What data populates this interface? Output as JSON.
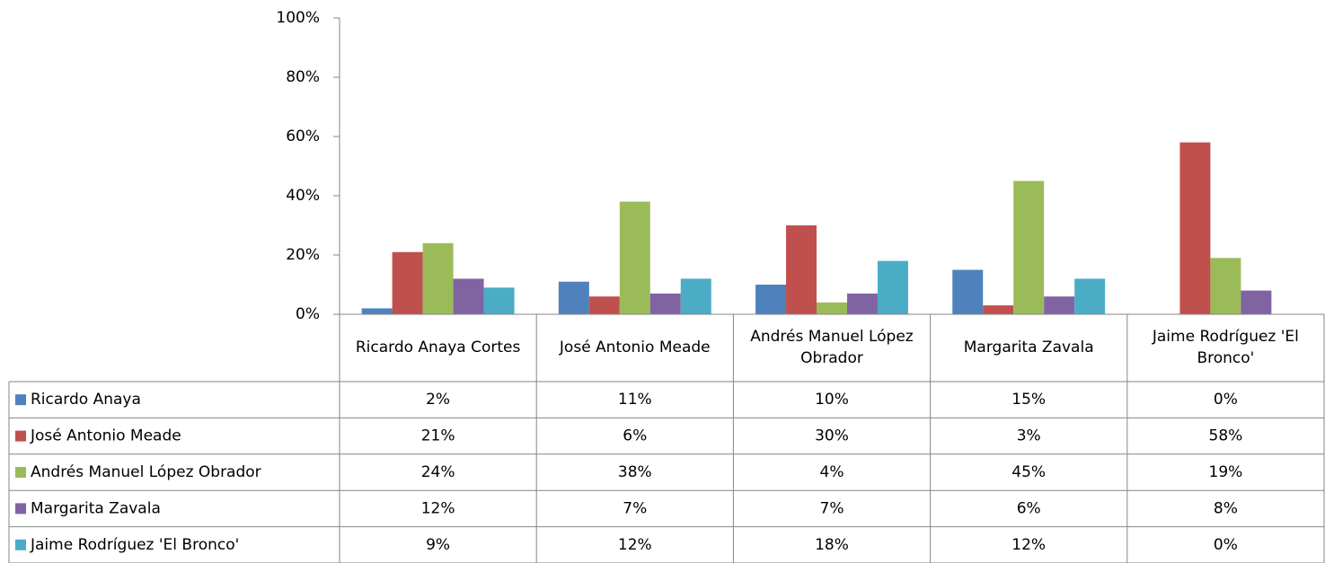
{
  "chart_data": {
    "type": "bar",
    "categories": [
      "Ricardo Anaya Cortes",
      "José Antonio Meade",
      "Andrés Manuel López Obrador",
      "Margarita Zavala",
      "Jaime Rodríguez 'El Bronco'"
    ],
    "series": [
      {
        "name": "Ricardo Anaya",
        "color": "#4f81bd",
        "values": [
          2,
          11,
          10,
          15,
          0
        ],
        "value_labels": [
          "2%",
          "11%",
          "10%",
          "15%",
          "0%"
        ]
      },
      {
        "name": "José Antonio Meade",
        "color": "#c0504d",
        "values": [
          21,
          6,
          30,
          3,
          58
        ],
        "value_labels": [
          "21%",
          "6%",
          "30%",
          "3%",
          "58%"
        ]
      },
      {
        "name": "Andrés Manuel López Obrador",
        "color": "#9bbb59",
        "values": [
          24,
          38,
          4,
          45,
          19
        ],
        "value_labels": [
          "24%",
          "38%",
          "4%",
          "45%",
          "19%"
        ]
      },
      {
        "name": "Margarita Zavala",
        "color": "#8064a2",
        "values": [
          12,
          7,
          7,
          6,
          8
        ],
        "value_labels": [
          "12%",
          "7%",
          "7%",
          "6%",
          "8%"
        ]
      },
      {
        "name": "Jaime Rodríguez 'El Bronco'",
        "color": "#4bacc6",
        "values": [
          9,
          12,
          18,
          12,
          0
        ],
        "value_labels": [
          "9%",
          "12%",
          "18%",
          "12%",
          "0%"
        ]
      }
    ],
    "ylim": [
      0,
      100
    ],
    "yticks": [
      {
        "value": 0,
        "label": "0%"
      },
      {
        "value": 20,
        "label": "20%"
      },
      {
        "value": 40,
        "label": "40%"
      },
      {
        "value": 60,
        "label": "60%"
      },
      {
        "value": 80,
        "label": "80%"
      },
      {
        "value": 100,
        "label": "100%"
      }
    ]
  }
}
